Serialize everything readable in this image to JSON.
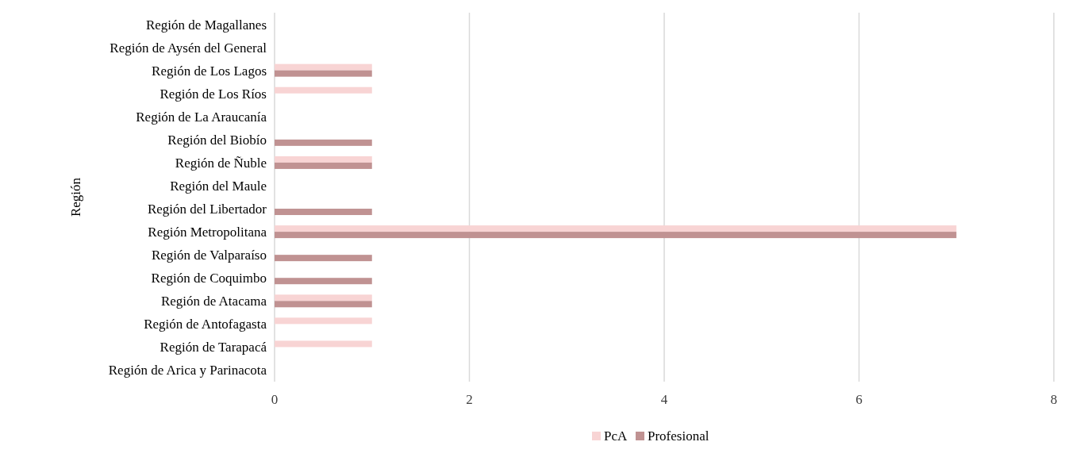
{
  "chart_data": {
    "type": "bar",
    "orientation": "horizontal",
    "ylabel": "Región",
    "categories": [
      "Región de Magallanes",
      "Región de Aysén del General",
      "Región de Los Lagos",
      "Región de Los Ríos",
      "Región de La Araucanía",
      "Región del Biobío",
      "Región de Ñuble",
      "Región del Maule",
      "Región del Libertador",
      "Región Metropolitana",
      "Región de Valparaíso",
      "Región de Coquimbo",
      "Región de Atacama",
      "Región de Antofagasta",
      "Región de Tarapacá",
      "Región de Arica y Parinacota"
    ],
    "series": [
      {
        "name": "PcA",
        "color": "#f8d4d4",
        "values": [
          0,
          0,
          1,
          1,
          0,
          0,
          1,
          0,
          0,
          7,
          0,
          0,
          1,
          1,
          1,
          0
        ]
      },
      {
        "name": "Profesional",
        "color": "#c09292",
        "values": [
          0,
          0,
          1,
          0,
          0,
          1,
          1,
          0,
          1,
          7,
          1,
          1,
          1,
          0,
          0,
          0
        ]
      }
    ],
    "xlim": [
      0,
      8
    ],
    "xticks": [
      0,
      2,
      4,
      6,
      8
    ],
    "grid": "x",
    "legend": "bottom"
  }
}
